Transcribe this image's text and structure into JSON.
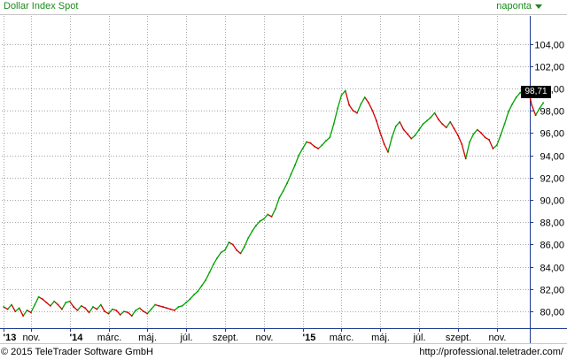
{
  "header": {
    "title": "Dollar Index Spot",
    "interval": "naponta"
  },
  "footer": {
    "copyright": "© 2015 TeleTrader Software GmbH",
    "url": "http://professional.teletrader.com/"
  },
  "last_price": "98,71",
  "colors": {
    "up": "#00a000",
    "down": "#d00000",
    "grid": "#a8a8a8",
    "axis": "#1f3a8f",
    "title": "#1a8a1a"
  },
  "chart_data": {
    "type": "line",
    "title": "Dollar Index Spot",
    "grid": true,
    "y_axis_position": "right",
    "ylim": [
      78.5,
      106.5
    ],
    "y_ticks": [
      80,
      82,
      84,
      86,
      88,
      90,
      92,
      94,
      96,
      98,
      100,
      102,
      104
    ],
    "y_tick_labels": [
      "80,00",
      "82,00",
      "84,00",
      "86,00",
      "88,00",
      "90,00",
      "92,00",
      "94,00",
      "96,00",
      "98,00",
      "100,00",
      "102,00",
      "104,00"
    ],
    "x_tick_labels": [
      "'13",
      "nov.",
      "'14",
      "márc.",
      "máj.",
      "júl.",
      "szept.",
      "nov.",
      "'15",
      "márc.",
      "máj.",
      "júl.",
      "szept.",
      "nov."
    ],
    "x_tick_bold": [
      true,
      false,
      true,
      false,
      false,
      false,
      false,
      false,
      true,
      false,
      false,
      false,
      false,
      false
    ],
    "x_tick_index": [
      0,
      7,
      17,
      27,
      37,
      47,
      57,
      67,
      77,
      87,
      97,
      107,
      117,
      127
    ],
    "x_count": 136,
    "series": [
      {
        "values": [
          80.4,
          80.2,
          80.6,
          80.0,
          80.3,
          79.6,
          80.1,
          79.9,
          80.6,
          81.3,
          81.1,
          80.8,
          80.5,
          80.9,
          80.6,
          80.2,
          80.8,
          80.9,
          80.4,
          80.1,
          80.5,
          80.3,
          79.9,
          80.4,
          80.2,
          80.6,
          80.0,
          79.8,
          80.2,
          80.1,
          79.7,
          80.0,
          79.9,
          79.6,
          80.1,
          80.3,
          80.0,
          79.8,
          80.2,
          80.6,
          80.5,
          80.4,
          80.3,
          80.2,
          80.1,
          80.4,
          80.5,
          80.8,
          81.1,
          81.5,
          81.8,
          82.3,
          82.8,
          83.5,
          84.2,
          84.8,
          85.3,
          85.5,
          86.2,
          86.0,
          85.5,
          85.2,
          85.8,
          86.6,
          87.2,
          87.7,
          88.1,
          88.3,
          88.7,
          88.5,
          89.2,
          90.2,
          90.8,
          91.5,
          92.3,
          93.1,
          94.0,
          94.6,
          95.2,
          95.1,
          94.8,
          94.6,
          94.9,
          95.3,
          95.6,
          96.8,
          98.2,
          99.4,
          99.8,
          98.5,
          98.0,
          97.8,
          98.6,
          99.2,
          98.7,
          98.0,
          97.1,
          96.0,
          95.0,
          94.3,
          95.6,
          96.6,
          97.0,
          96.3,
          95.9,
          95.5,
          95.8,
          96.3,
          96.8,
          97.1,
          97.4,
          97.8,
          97.2,
          96.8,
          96.5,
          97.0,
          96.4,
          95.8,
          95.0,
          93.7,
          95.2,
          95.9,
          96.3,
          96.0,
          95.6,
          95.4,
          94.6,
          94.9,
          95.8,
          96.8,
          97.9,
          98.6,
          99.2,
          99.6,
          99.9,
          100.1,
          98.5,
          97.6,
          98.2,
          98.7
        ]
      }
    ]
  }
}
